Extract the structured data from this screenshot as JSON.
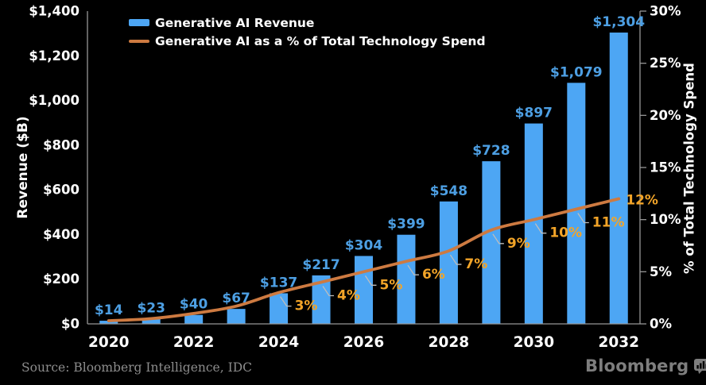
{
  "colors": {
    "background": "#000000",
    "bar": "#4DA6F4",
    "bar_value_label": "#4D9FE3",
    "line": "#CD7A41",
    "pct_label": "#F2A428",
    "axis_line": "#969696",
    "tick_text": "#FFFFFF",
    "leader_line": "#BDBDBD",
    "source_text": "#8C8C8C",
    "logo": "#7E7E7E"
  },
  "legend": {
    "bar_label": "Generative AI Revenue",
    "line_label": "Generative AI as a % of Total Technology Spend"
  },
  "y_left": {
    "title": "Revenue ($B)",
    "ticks": [
      "$1,400",
      "$1,200",
      "$1,000",
      "$800",
      "$600",
      "$400",
      "$200",
      "$0"
    ]
  },
  "y_right": {
    "title": "% of Total Technology Spend",
    "ticks": [
      "30%",
      "25%",
      "20%",
      "15%",
      "10%",
      "5%",
      "0%"
    ]
  },
  "x_axis": {
    "tick_labels": [
      "2020",
      "2022",
      "2024",
      "2026",
      "2028",
      "2030",
      "2032"
    ]
  },
  "chart_data": {
    "type": "combo",
    "categories": [
      2020,
      2021,
      2022,
      2023,
      2024,
      2025,
      2026,
      2027,
      2028,
      2029,
      2030,
      2031,
      2032
    ],
    "series": [
      {
        "name": "Generative AI Revenue",
        "type": "bar",
        "axis": "left",
        "unit": "$B",
        "values": [
          14,
          23,
          40,
          67,
          137,
          217,
          304,
          399,
          548,
          728,
          897,
          1079,
          1304
        ],
        "data_labels": [
          "$14",
          "$23",
          "$40",
          "$67",
          "$137",
          "$217",
          "$304",
          "$399",
          "$548",
          "$728",
          "$897",
          "$1,079",
          "$1,304"
        ]
      },
      {
        "name": "Generative AI as a % of Total Technology Spend",
        "type": "line",
        "axis": "right",
        "unit": "%",
        "values": [
          0.3,
          0.5,
          1.0,
          1.7,
          3,
          4,
          5,
          6,
          7,
          9,
          10,
          11,
          12
        ],
        "data_labels": [
          "",
          "",
          "",
          "",
          "3%",
          "4%",
          "5%",
          "6%",
          "7%",
          "9%",
          "10%",
          "11%",
          "12%"
        ]
      }
    ],
    "ylim_left": [
      0,
      1400
    ],
    "ylim_right": [
      0,
      30
    ],
    "legend_position": "top-left",
    "grid": false
  },
  "footer": {
    "source": "Source: Bloomberg Intelligence, IDC",
    "logo": "Bloomberg"
  }
}
